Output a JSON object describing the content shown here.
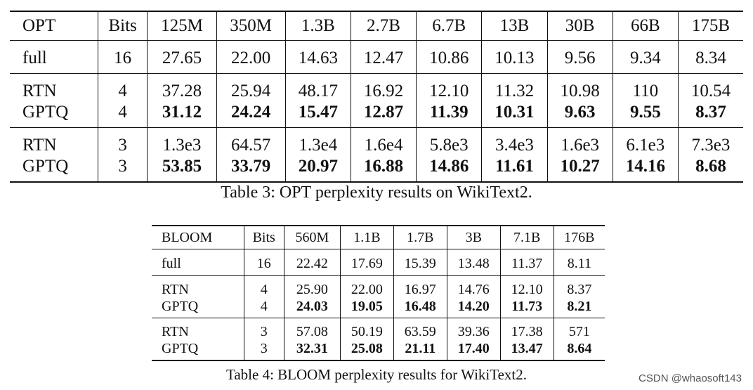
{
  "table3": {
    "headers": [
      "OPT",
      "Bits",
      "125M",
      "350M",
      "1.3B",
      "2.7B",
      "6.7B",
      "13B",
      "30B",
      "66B",
      "175B"
    ],
    "full": {
      "method": "full",
      "bits": "16",
      "values": [
        "27.65",
        "22.00",
        "14.63",
        "12.47",
        "10.86",
        "10.13",
        "9.56",
        "9.34",
        "8.34"
      ]
    },
    "groups": [
      {
        "rtn": {
          "method": "RTN",
          "bits": "4",
          "values": [
            "37.28",
            "25.94",
            "48.17",
            "16.92",
            "12.10",
            "11.32",
            "10.98",
            "110",
            "10.54"
          ]
        },
        "gptq": {
          "method": "GPTQ",
          "bits": "4",
          "values": [
            "31.12",
            "24.24",
            "15.47",
            "12.87",
            "11.39",
            "10.31",
            "9.63",
            "9.55",
            "8.37"
          ]
        }
      },
      {
        "rtn": {
          "method": "RTN",
          "bits": "3",
          "values": [
            "1.3e3",
            "64.57",
            "1.3e4",
            "1.6e4",
            "5.8e3",
            "3.4e3",
            "1.6e3",
            "6.1e3",
            "7.3e3"
          ]
        },
        "gptq": {
          "method": "GPTQ",
          "bits": "3",
          "values": [
            "53.85",
            "33.79",
            "20.97",
            "16.88",
            "14.86",
            "11.61",
            "10.27",
            "14.16",
            "8.68"
          ]
        }
      }
    ],
    "caption": "Table 3: OPT perplexity results on WikiText2."
  },
  "table4": {
    "headers": [
      "BLOOM",
      "Bits",
      "560M",
      "1.1B",
      "1.7B",
      "3B",
      "7.1B",
      "176B"
    ],
    "full": {
      "method": "full",
      "bits": "16",
      "values": [
        "22.42",
        "17.69",
        "15.39",
        "13.48",
        "11.37",
        "8.11"
      ]
    },
    "groups": [
      {
        "rtn": {
          "method": "RTN",
          "bits": "4",
          "values": [
            "25.90",
            "22.00",
            "16.97",
            "14.76",
            "12.10",
            "8.37"
          ]
        },
        "gptq": {
          "method": "GPTQ",
          "bits": "4",
          "values": [
            "24.03",
            "19.05",
            "16.48",
            "14.20",
            "11.73",
            "8.21"
          ]
        }
      },
      {
        "rtn": {
          "method": "RTN",
          "bits": "3",
          "values": [
            "57.08",
            "50.19",
            "63.59",
            "39.36",
            "17.38",
            "571"
          ]
        },
        "gptq": {
          "method": "GPTQ",
          "bits": "3",
          "values": [
            "32.31",
            "25.08",
            "21.11",
            "17.40",
            "13.47",
            "8.64"
          ]
        }
      }
    ],
    "caption": "Table 4: BLOOM perplexity results for WikiText2."
  },
  "watermark": "CSDN @whaosoft143"
}
